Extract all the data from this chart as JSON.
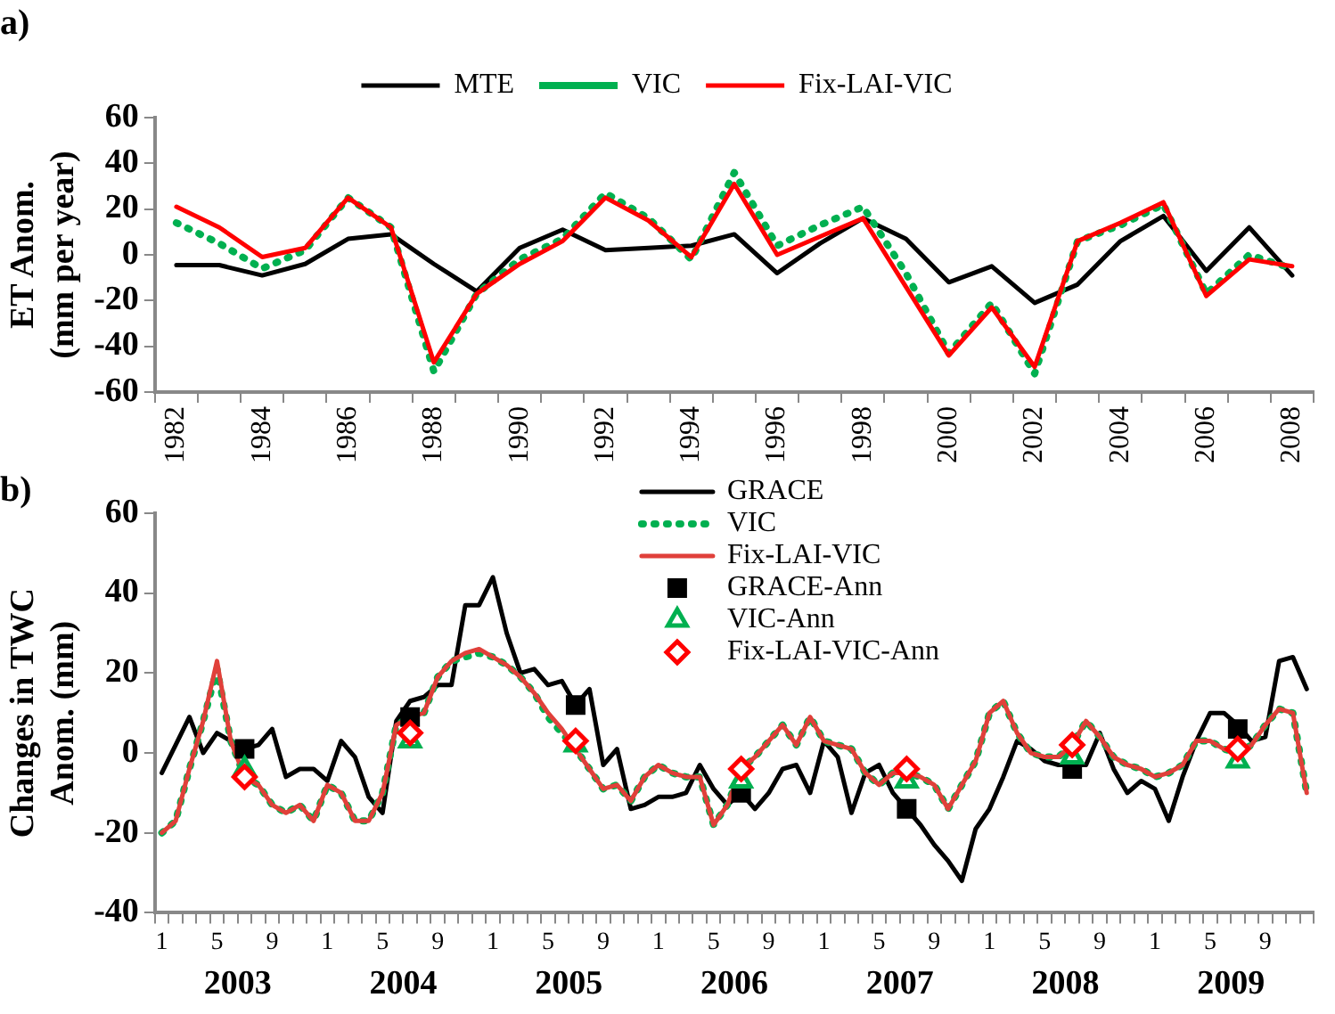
{
  "chart_data": [
    {
      "type": "line",
      "title": "a)",
      "ylabel": "ET Anom.\n(mm per year)",
      "categories": [
        "1982",
        null,
        "1984",
        null,
        "1986",
        null,
        "1988",
        null,
        "1990",
        null,
        "1992",
        null,
        "1994",
        null,
        "1996",
        null,
        "1998",
        null,
        "2000",
        null,
        "2002",
        null,
        "2004",
        null,
        "2006",
        null,
        "2008"
      ],
      "series": [
        {
          "name": "MTE",
          "color": "#000000",
          "line_style": "solid",
          "values": [
            -4.5,
            -4.5,
            -9,
            -4,
            7,
            9,
            -4,
            -16,
            3,
            11,
            2,
            3,
            4,
            9,
            -8,
            5,
            16,
            7,
            -12,
            -5,
            -21,
            -13,
            6,
            17,
            -7,
            12,
            -9
          ]
        },
        {
          "name": "VIC",
          "color": "#00b050",
          "line_style": "dotted",
          "values": [
            14,
            5,
            -6,
            2,
            25,
            12,
            -51,
            -17,
            -2,
            7,
            27,
            16,
            -2,
            36,
            4,
            13,
            21,
            -8,
            -43,
            -21,
            -52,
            6,
            13,
            22,
            -17,
            0,
            -6
          ]
        },
        {
          "name": "Fix-LAI-VIC",
          "color": "#ff0000",
          "line_style": "solid",
          "values": [
            21,
            12,
            -1,
            3,
            25,
            12,
            -47,
            -17,
            -4,
            6,
            25,
            15,
            -1,
            31,
            0,
            8,
            16,
            -14,
            -44,
            -23,
            -49,
            6,
            14,
            23,
            -18,
            -2,
            -5
          ]
        }
      ],
      "ylim": [
        -60,
        60
      ],
      "yticks": [
        -60,
        -40,
        -20,
        0,
        20,
        40,
        60
      ],
      "grid": false,
      "legend": "top",
      "marker": "none"
    },
    {
      "type": "line",
      "title": "b)",
      "ylabel": "Changes in TWC\nAnom. (mm)",
      "categories": [
        "1",
        null,
        null,
        null,
        "5",
        null,
        null,
        null,
        "9",
        null,
        null,
        null,
        "1",
        null,
        null,
        null,
        "5",
        null,
        null,
        null,
        "9",
        null,
        null,
        null,
        "1",
        null,
        null,
        null,
        "5",
        null,
        null,
        null,
        "9",
        null,
        null,
        null,
        "1",
        null,
        null,
        null,
        "5",
        null,
        null,
        null,
        "9",
        null,
        null,
        null,
        "1",
        null,
        null,
        null,
        "5",
        null,
        null,
        null,
        "9",
        null,
        null,
        null,
        "1",
        null,
        null,
        null,
        "5",
        null,
        null,
        null,
        "9",
        null,
        null,
        null,
        "1",
        null,
        null,
        null,
        "5",
        null,
        null,
        null,
        "9",
        null,
        null,
        null
      ],
      "series": [
        {
          "name": "GRACE",
          "color": "#000000",
          "line_style": "solid",
          "marker": "none",
          "values": [
            -5,
            2,
            9,
            0,
            5,
            3,
            1,
            2,
            6,
            -6,
            -4,
            -4,
            -7,
            3,
            -1,
            -11,
            -15,
            8,
            13,
            14,
            17,
            17,
            37,
            37,
            44,
            30,
            20,
            21,
            17,
            18,
            12,
            16,
            -3,
            1,
            -14,
            -13,
            -11,
            -11,
            -10,
            -3,
            -9,
            -13,
            -10,
            -14,
            -10,
            -4,
            -3,
            -10,
            3,
            -1,
            -15,
            -5,
            -3,
            -10,
            -14,
            -18,
            -23,
            -27,
            -32,
            -19,
            -14,
            -6,
            3,
            1,
            -2,
            -3,
            -3,
            -3,
            5,
            -4,
            -10,
            -7,
            -9,
            -17,
            -6,
            3,
            10,
            10,
            7,
            3,
            4,
            23,
            24,
            16
          ]
        },
        {
          "name": "VIC",
          "color": "#00b050",
          "line_style": "dotted",
          "marker": "none",
          "values": [
            -20,
            -17,
            -4,
            8,
            21,
            3,
            -6,
            -8,
            -13,
            -15,
            -13,
            -17,
            -8,
            -10,
            -17,
            -17,
            -10,
            7,
            9,
            10,
            19,
            23,
            24,
            25,
            24,
            22,
            19,
            15,
            9,
            5,
            1,
            -4,
            -9,
            -8,
            -12,
            -6,
            -3,
            -5,
            -6,
            -6,
            -18,
            -13,
            -4,
            -1,
            3,
            7,
            2,
            9,
            3,
            2,
            1,
            -5,
            -8,
            -5,
            -5,
            -6,
            -8,
            -14,
            -8,
            -2,
            10,
            13,
            5,
            0,
            -1,
            -1,
            2,
            8,
            4,
            -1,
            -3,
            -4,
            -6,
            -5,
            -3,
            3,
            3,
            1,
            0,
            2,
            7,
            11,
            10,
            -10
          ]
        },
        {
          "name": "Fix-LAI-VIC",
          "color": "#e0403a",
          "line_style": "solid",
          "marker": "none",
          "values": [
            -20,
            -17,
            -4,
            8,
            23,
            3,
            -6,
            -8,
            -13,
            -15,
            -13,
            -17,
            -8,
            -10,
            -17,
            -17,
            -10,
            7,
            9,
            10,
            19,
            23,
            25,
            26,
            24,
            22,
            19,
            15,
            10,
            6,
            1,
            -4,
            -9,
            -8,
            -12,
            -6,
            -3,
            -5,
            -6,
            -6,
            -18,
            -13,
            -4,
            -1,
            3,
            7,
            2,
            9,
            3,
            2,
            1,
            -5,
            -8,
            -5,
            -5,
            -6,
            -8,
            -14,
            -8,
            -2,
            10,
            13,
            5,
            0,
            -1,
            -1,
            2,
            8,
            4,
            -1,
            -3,
            -4,
            -6,
            -5,
            -3,
            3,
            3,
            1,
            0,
            2,
            7,
            11,
            10,
            -10
          ]
        },
        {
          "name": "GRACE-Ann",
          "type": "scatter",
          "color": "#000000",
          "marker": "square",
          "values": [
            null,
            null,
            null,
            null,
            null,
            null,
            1,
            null,
            null,
            null,
            null,
            null,
            null,
            null,
            null,
            null,
            null,
            null,
            9,
            null,
            null,
            null,
            null,
            null,
            null,
            null,
            null,
            null,
            null,
            null,
            12,
            null,
            null,
            null,
            null,
            null,
            null,
            null,
            null,
            null,
            null,
            null,
            -10,
            null,
            null,
            null,
            null,
            null,
            null,
            null,
            null,
            null,
            null,
            null,
            -14,
            null,
            null,
            null,
            null,
            null,
            null,
            null,
            null,
            null,
            null,
            null,
            -4,
            null,
            null,
            null,
            null,
            null,
            null,
            null,
            null,
            null,
            null,
            null,
            6,
            null,
            null,
            null,
            null,
            null
          ]
        },
        {
          "name": "VIC-Ann",
          "type": "scatter",
          "color": "#00b050",
          "marker": "triangle",
          "values": [
            null,
            null,
            null,
            null,
            null,
            null,
            -4,
            null,
            null,
            null,
            null,
            null,
            null,
            null,
            null,
            null,
            null,
            null,
            3,
            null,
            null,
            null,
            null,
            null,
            null,
            null,
            null,
            null,
            null,
            null,
            2,
            null,
            null,
            null,
            null,
            null,
            null,
            null,
            null,
            null,
            null,
            null,
            -7,
            null,
            null,
            null,
            null,
            null,
            null,
            null,
            null,
            null,
            null,
            null,
            -7,
            null,
            null,
            null,
            null,
            null,
            null,
            null,
            null,
            null,
            null,
            null,
            -1,
            null,
            null,
            null,
            null,
            null,
            null,
            null,
            null,
            null,
            null,
            null,
            -2,
            null,
            null,
            null,
            null,
            null
          ]
        },
        {
          "name": "Fix-LAI-VIC-Ann",
          "type": "scatter",
          "color": "#ff0000",
          "marker": "diamond",
          "values": [
            null,
            null,
            null,
            null,
            null,
            null,
            -6,
            null,
            null,
            null,
            null,
            null,
            null,
            null,
            null,
            null,
            null,
            null,
            5,
            null,
            null,
            null,
            null,
            null,
            null,
            null,
            null,
            null,
            null,
            null,
            3,
            null,
            null,
            null,
            null,
            null,
            null,
            null,
            null,
            null,
            null,
            null,
            -4,
            null,
            null,
            null,
            null,
            null,
            null,
            null,
            null,
            null,
            null,
            null,
            -4,
            null,
            null,
            null,
            null,
            null,
            null,
            null,
            null,
            null,
            null,
            null,
            2,
            null,
            null,
            null,
            null,
            null,
            null,
            null,
            null,
            null,
            null,
            null,
            1,
            null,
            null,
            null,
            null,
            null
          ]
        }
      ],
      "annotations": [
        "2003",
        "2004",
        "2005",
        "2006",
        "2007",
        "2008",
        "2009"
      ],
      "ylim": [
        -40,
        60
      ],
      "yticks": [
        -40,
        -20,
        0,
        20,
        40,
        60
      ],
      "grid": false,
      "legend": "top right"
    }
  ]
}
